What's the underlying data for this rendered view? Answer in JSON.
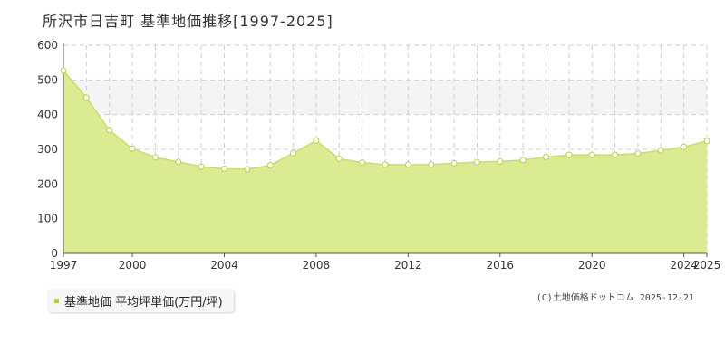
{
  "title": "所沢市日吉町 基準地価推移[1997-2025]",
  "legend": {
    "label": "基準地価 平均坪単価(万円/坪)"
  },
  "credit": "(C)土地価格ドットコム 2025-12-21",
  "chart_data": {
    "type": "area",
    "title": "所沢市日吉町 基準地価推移[1997-2025]",
    "x": [
      1997,
      1998,
      1999,
      2000,
      2001,
      2002,
      2003,
      2004,
      2005,
      2006,
      2007,
      2008,
      2009,
      2010,
      2011,
      2012,
      2013,
      2014,
      2015,
      2016,
      2017,
      2018,
      2019,
      2020,
      2021,
      2022,
      2023,
      2024,
      2025
    ],
    "series": [
      {
        "name": "基準地価 平均坪単価(万円/坪)",
        "values": [
          527,
          449,
          355,
          302,
          277,
          264,
          250,
          244,
          243,
          254,
          289,
          325,
          273,
          262,
          256,
          256,
          256,
          260,
          263,
          265,
          269,
          278,
          284,
          284,
          284,
          288,
          297,
          307,
          324
        ]
      }
    ],
    "xticks": [
      "1997",
      "2000",
      "2004",
      "2008",
      "2012",
      "2016",
      "2020",
      "2024",
      "2025"
    ],
    "yticks": [
      "0",
      "100",
      "200",
      "300",
      "400",
      "500",
      "600"
    ],
    "xlim": [
      1997,
      2025
    ],
    "ylim": [
      0,
      600
    ],
    "grid": true,
    "legend_position": "bottom-left",
    "colors": {
      "fill": "#dbeb92",
      "line": "#c6df6a",
      "marker_stroke": "#b5d24a",
      "legend_marker": "#a9d13d",
      "band": "#f4f4f4"
    }
  }
}
